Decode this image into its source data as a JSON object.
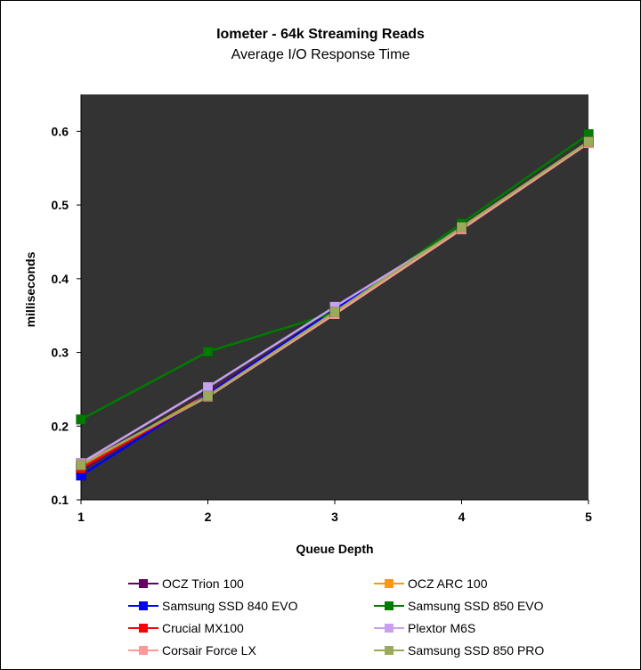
{
  "chart_data": {
    "type": "line",
    "title": "Iometer - 64k Streaming Reads",
    "subtitle": "Average I/O Response Time",
    "xlabel": "Queue Depth",
    "ylabel": "milliseconds",
    "x": [
      1,
      2,
      3,
      4,
      5
    ],
    "xlim": [
      1,
      5
    ],
    "ylim": [
      0.1,
      0.65
    ],
    "yticks": [
      "0.1",
      "0.2",
      "0.3",
      "0.4",
      "0.5",
      "0.6"
    ],
    "xticks": [
      "1",
      "2",
      "3",
      "4",
      "5"
    ],
    "plot_background": "#333333",
    "grid": false,
    "legend_position": "bottom",
    "series": [
      {
        "name": "OCZ Trion 100",
        "color": "#660066",
        "values": [
          0.14,
          0.245,
          0.357,
          0.469,
          0.585
        ]
      },
      {
        "name": "OCZ ARC 100",
        "color": "#ff9900",
        "values": [
          0.145,
          0.243,
          0.356,
          0.47,
          0.586
        ]
      },
      {
        "name": "Samsung SSD 840 EVO",
        "color": "#0000ff",
        "values": [
          0.133,
          0.243,
          0.358,
          0.47,
          0.586
        ]
      },
      {
        "name": "Samsung SSD 850 EVO",
        "color": "#007a00",
        "values": [
          0.209,
          0.301,
          0.354,
          0.475,
          0.596
        ]
      },
      {
        "name": "Crucial MX100",
        "color": "#ff0000",
        "values": [
          0.143,
          0.241,
          0.355,
          0.469,
          0.586
        ]
      },
      {
        "name": "Plextor M6S",
        "color": "#c8a0f0",
        "values": [
          0.15,
          0.253,
          0.362,
          0.468,
          0.585
        ]
      },
      {
        "name": "Corsair Force LX",
        "color": "#ff9999",
        "values": [
          0.148,
          0.24,
          0.352,
          0.467,
          0.584
        ]
      },
      {
        "name": "Samsung SSD 850 PRO",
        "color": "#9aaa5a",
        "values": [
          0.147,
          0.241,
          0.355,
          0.47,
          0.586
        ]
      }
    ]
  }
}
